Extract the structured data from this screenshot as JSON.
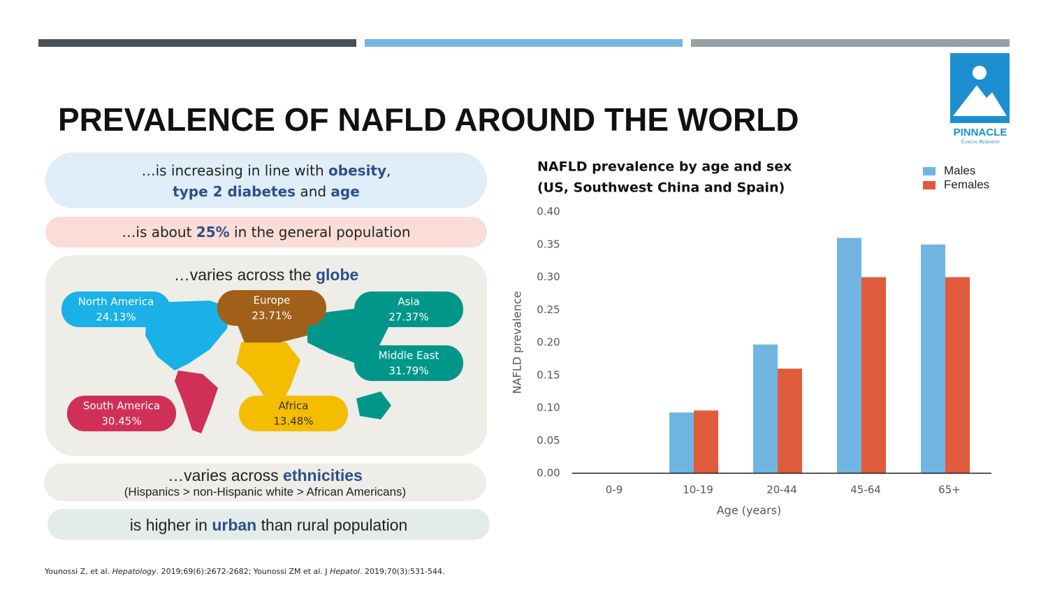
{
  "logo": {
    "name": "PINNACLE",
    "tagline": "Clinical Research"
  },
  "title": "PREVALENCE OF NAFLD AROUND THE WORLD",
  "points": {
    "increasing": [
      [
        "…is increasing in line with ",
        "obesity",
        ","
      ],
      [
        "type 2 diabetes",
        " and ",
        "age"
      ]
    ],
    "about": [
      "…is about ",
      "25%",
      " in the general population"
    ],
    "globe": [
      "…varies across the ",
      "globe"
    ],
    "ethnicities": [
      "…varies across ",
      "ethnicities"
    ],
    "ethnicities_note": "(Hispanics > non-Hispanic white > African Americans)",
    "urban": [
      "is higher in ",
      "urban",
      " than rural population"
    ]
  },
  "regions": [
    {
      "name": "North America",
      "value": "24.13%"
    },
    {
      "name": "Europe",
      "value": "23.71%"
    },
    {
      "name": "Asia",
      "value": "27.37%"
    },
    {
      "name": "Middle East",
      "value": "31.79%"
    },
    {
      "name": "South America",
      "value": "30.45%"
    },
    {
      "name": "Africa",
      "value": "13.48%"
    }
  ],
  "citation": [
    "Younossi Z, et al. ",
    "Hepatology",
    ". 2019;69(6):2672-2682; Younossi ZM et al. J ",
    "Hepatol",
    ". 2019;70(3):531-544."
  ],
  "chart_data": {
    "type": "bar",
    "title": [
      "NAFLD prevalence by age and sex",
      "(US, Southwest China and Spain)"
    ],
    "x_label": "Age (years)",
    "y_label": "NAFLD prevalence",
    "categories": [
      "0-9",
      "10-19",
      "20-44",
      "45-64",
      "65+"
    ],
    "series": [
      {
        "name": "Males",
        "color": "#70b5e2",
        "values": [
          0,
          0.093,
          0.197,
          0.36,
          0.35
        ]
      },
      {
        "name": "Females",
        "color": "#e05b3c",
        "values": [
          0,
          0.096,
          0.16,
          0.3,
          0.3
        ]
      }
    ],
    "ylim": [
      0,
      0.4
    ],
    "yticks": [
      {
        "value": 0,
        "label": "0.00"
      },
      {
        "value": 0.05,
        "label": "0.05"
      },
      {
        "value": 0.1,
        "label": "0.10"
      },
      {
        "value": 0.15,
        "label": "0.15"
      },
      {
        "value": 0.2,
        "label": "0.20"
      },
      {
        "value": 0.25,
        "label": "0.25"
      },
      {
        "value": 0.3,
        "label": "0.30"
      },
      {
        "value": 0.35,
        "label": "0.35"
      },
      {
        "value": 0.4,
        "label": "0.40"
      }
    ],
    "grid": false,
    "legend": "top-right"
  }
}
